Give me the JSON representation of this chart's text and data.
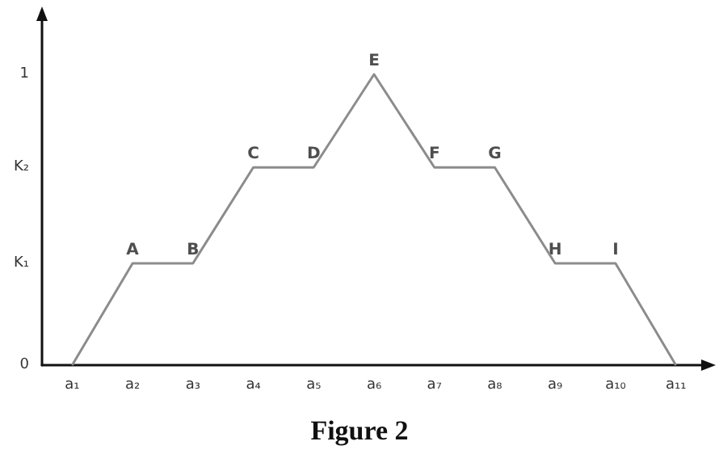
{
  "chart_data": {
    "type": "line",
    "categories": [
      "a₁",
      "a₂",
      "a₃",
      "a₄",
      "a₅",
      "a₆",
      "a₇",
      "a₈",
      "a₉",
      "a₁₀",
      "a₁₁"
    ],
    "series": [
      {
        "color": "#8c8c8c",
        "values": [
          0,
          0.35,
          0.35,
          0.68,
          0.68,
          1,
          0.68,
          0.68,
          0.35,
          0.35,
          0
        ]
      }
    ],
    "ylim": [
      0,
      1.2
    ],
    "yticks": [
      0,
      {
        "value": 0.35,
        "label": "K₁"
      },
      {
        "value": 0.68,
        "label": "K₂"
      },
      1
    ],
    "grid": false,
    "marker": "none",
    "line_style": "solid",
    "annotations": [
      {
        "text": "A",
        "x": "a₂",
        "y": 0.35
      },
      {
        "text": "B",
        "x": "a₃",
        "y": 0.35
      },
      {
        "text": "C",
        "x": "a₄",
        "y": 0.68
      },
      {
        "text": "D",
        "x": "a₅",
        "y": 0.68
      },
      {
        "text": "E",
        "x": "a₆",
        "y": 1
      },
      {
        "text": "F",
        "x": "a₇",
        "y": 0.68
      },
      {
        "text": "G",
        "x": "a₈",
        "y": 0.68
      },
      {
        "text": "H",
        "x": "a₉",
        "y": 0.35
      },
      {
        "text": "I",
        "x": "a₁₀",
        "y": 0.35
      },
      "Figure 2"
    ]
  }
}
